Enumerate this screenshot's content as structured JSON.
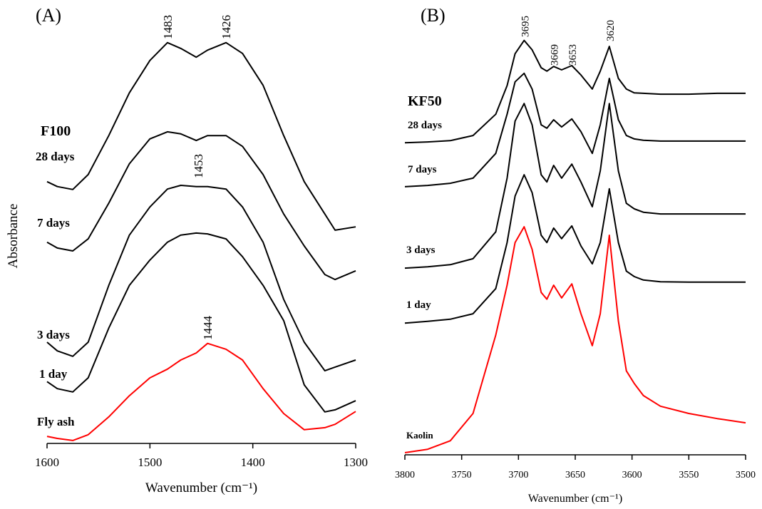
{
  "chart_data": [
    {
      "type": "line",
      "title": "(A)",
      "subtitle": "F100",
      "xlabel": "Wavenumber (cm⁻¹)",
      "ylabel": "Absorbance",
      "x": [
        1600,
        1590,
        1575,
        1560,
        1540,
        1520,
        1500,
        1483,
        1470,
        1455,
        1444,
        1426,
        1410,
        1390,
        1370,
        1350,
        1330,
        1320,
        1300
      ],
      "xlim": [
        1600,
        1300
      ],
      "xticks": [
        1600,
        1500,
        1400,
        1300
      ],
      "ylim": [
        0,
        100
      ],
      "annotations": [
        1483,
        1426,
        1453,
        1444
      ],
      "series": [
        {
          "name": "28 days",
          "color": "#000000",
          "values": [
            63.1,
            61.9,
            61.2,
            64.8,
            74.2,
            84.5,
            92.3,
            96.6,
            95.2,
            93.1,
            94.8,
            96.6,
            94.0,
            86.3,
            74.2,
            63.1,
            55.3,
            51.4,
            52.2
          ]
        },
        {
          "name": "7 days",
          "color": "#000000",
          "values": [
            48.5,
            47.1,
            46.4,
            49.3,
            57.9,
            67.4,
            73.4,
            75.1,
            74.6,
            73.0,
            74.2,
            74.2,
            71.6,
            64.8,
            55.3,
            47.6,
            40.7,
            39.5,
            41.6
          ]
        },
        {
          "name": "3 days",
          "color": "#000000",
          "values": [
            24.4,
            22.3,
            21.0,
            24.4,
            38.1,
            50.2,
            57.0,
            61.3,
            62.2,
            61.9,
            61.9,
            61.3,
            57.0,
            48.5,
            34.7,
            24.4,
            17.5,
            18.4,
            20.1
          ]
        },
        {
          "name": "1 day",
          "color": "#000000",
          "values": [
            14.9,
            13.2,
            12.4,
            15.8,
            27.8,
            38.1,
            44.2,
            48.5,
            50.2,
            50.7,
            50.5,
            49.3,
            45.0,
            38.1,
            29.6,
            14.1,
            7.6,
            8.1,
            10.3
          ]
        },
        {
          "name": "Fly ash",
          "color": "#ff0000",
          "values": [
            1.7,
            1.2,
            0.7,
            2.1,
            6.4,
            11.5,
            15.8,
            17.9,
            20.1,
            21.8,
            24.1,
            22.7,
            20.1,
            13.2,
            7.2,
            3.3,
            3.8,
            4.6,
            7.7
          ]
        }
      ]
    },
    {
      "type": "line",
      "title": "(B)",
      "subtitle": "KF50",
      "xlabel": "Wavenumber (cm⁻¹)",
      "x": [
        3800,
        3780,
        3760,
        3740,
        3720,
        3710,
        3703,
        3695,
        3688,
        3680,
        3675,
        3669,
        3662,
        3653,
        3645,
        3635,
        3628,
        3620,
        3612,
        3605,
        3598,
        3590,
        3575,
        3550,
        3525,
        3500
      ],
      "xlim": [
        3800,
        3500
      ],
      "xticks": [
        3800,
        3750,
        3700,
        3650,
        3600,
        3550,
        3500
      ],
      "ylim": [
        0,
        100
      ],
      "annotations": [
        3695,
        3669,
        3653,
        3620
      ],
      "series": [
        {
          "name": "28 days",
          "color": "#000000",
          "values": [
            73.2,
            73.4,
            73.7,
            74.9,
            79.9,
            86.6,
            94.1,
            97.2,
            95.0,
            90.8,
            90.0,
            91.1,
            90.3,
            91.3,
            89.1,
            85.8,
            90.0,
            95.8,
            88.3,
            85.8,
            84.9,
            84.8,
            84.6,
            84.6,
            84.8,
            84.8
          ]
        },
        {
          "name": "7 days",
          "color": "#000000",
          "values": [
            62.9,
            63.2,
            63.7,
            64.9,
            70.7,
            79.9,
            87.5,
            89.5,
            85.8,
            77.4,
            76.6,
            78.6,
            76.9,
            78.8,
            75.8,
            70.7,
            77.4,
            88.3,
            78.6,
            74.9,
            74.1,
            73.8,
            73.6,
            73.6,
            73.6,
            73.6
          ]
        },
        {
          "name": "3 days",
          "color": "#000000",
          "values": [
            43.8,
            44.1,
            44.6,
            46.0,
            52.3,
            64.9,
            78.3,
            82.4,
            77.4,
            65.7,
            64.0,
            67.9,
            64.9,
            68.2,
            64.0,
            58.2,
            66.6,
            82.4,
            66.6,
            59.0,
            57.7,
            56.9,
            56.5,
            56.5,
            56.5,
            56.5
          ]
        },
        {
          "name": "1 day",
          "color": "#000000",
          "values": [
            30.9,
            31.3,
            31.8,
            33.1,
            39.0,
            49.8,
            60.7,
            65.7,
            61.5,
            51.5,
            49.8,
            53.2,
            50.7,
            53.7,
            49.0,
            44.8,
            49.8,
            62.4,
            49.8,
            43.1,
            41.8,
            41.0,
            40.6,
            40.5,
            40.5,
            40.5
          ]
        },
        {
          "name": "Kaolin",
          "color": "#ff0000",
          "values": [
            0.5,
            1.3,
            3.3,
            9.7,
            28.1,
            39.8,
            49.8,
            53.5,
            48.2,
            38.1,
            36.5,
            39.8,
            36.8,
            40.1,
            33.1,
            25.6,
            33.1,
            51.5,
            31.4,
            19.7,
            16.7,
            13.9,
            11.4,
            9.7,
            8.5,
            7.5
          ]
        }
      ]
    }
  ]
}
